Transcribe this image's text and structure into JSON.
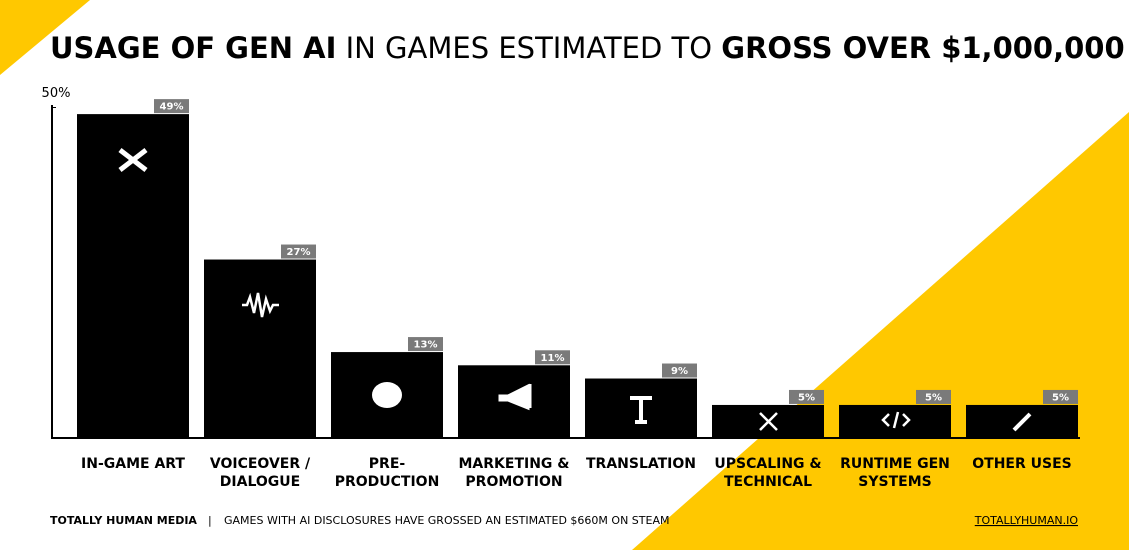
{
  "chart_data": {
    "type": "bar",
    "title_parts": [
      "USAGE OF GEN AI",
      "IN GAMES ESTIMATED TO",
      "GROSS OVER $1,000,000"
    ],
    "categories": [
      "IN-GAME ART",
      "VOICEOVER /\nDIALOGUE",
      "PRE-\nPRODUCTION",
      "MARKETING &\nPROMOTION",
      "TRANSLATION",
      "UPSCALING &\nTECHNICAL",
      "RUNTIME GEN\nSYSTEMS",
      "OTHER USES"
    ],
    "values": [
      49,
      27,
      13,
      11,
      9,
      5,
      5,
      5
    ],
    "value_labels": [
      "49%",
      "27%",
      "13%",
      "11%",
      "9%",
      "5%",
      "5%",
      "5%"
    ],
    "color": "#000000",
    "ylim": [
      0,
      50
    ],
    "yticks": [
      {
        "value": 50,
        "label": "50%"
      }
    ]
  },
  "footer": {
    "brand": "TOTALLY HUMAN MEDIA",
    "separator": "|",
    "note": "GAMES WITH AI DISCLOSURES HAVE GROSSED AN ESTIMATED $660M ON STEAM",
    "link": "TOTALLYHUMAN.IO"
  }
}
